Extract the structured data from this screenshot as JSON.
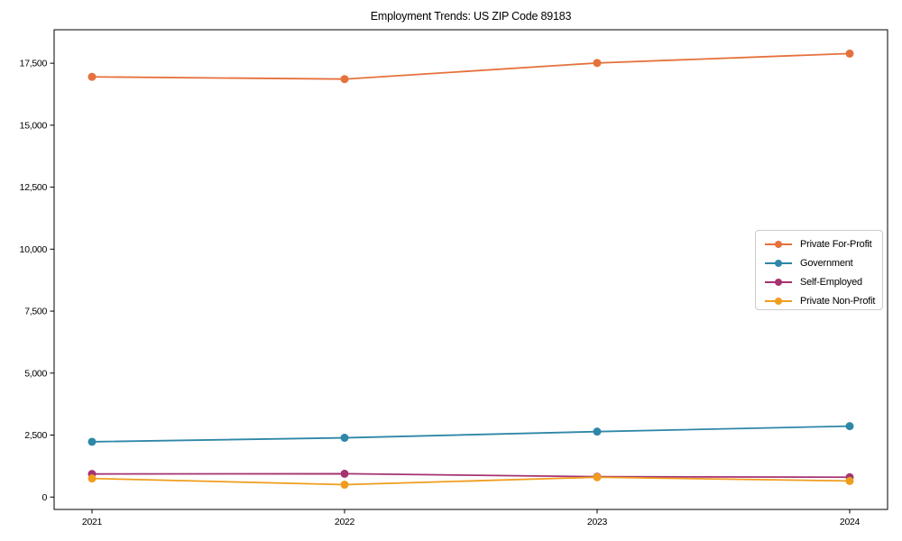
{
  "chart_data": {
    "type": "line",
    "title": "Employment Trends: US ZIP Code 89183",
    "xlabel": "",
    "ylabel": "",
    "categories": [
      "2021",
      "2022",
      "2023",
      "2024"
    ],
    "series": [
      {
        "name": "Private For-Profit",
        "color": "#E5713C",
        "values": [
          16950,
          16860,
          17510,
          17890
        ]
      },
      {
        "name": "Government",
        "color": "#2E87A8",
        "values": [
          2230,
          2390,
          2640,
          2860
        ]
      },
      {
        "name": "Self-Employed",
        "color": "#A53372",
        "values": [
          930,
          940,
          820,
          800
        ]
      },
      {
        "name": "Private Non-Profit",
        "color": "#F09D1E",
        "values": [
          750,
          500,
          800,
          650
        ]
      }
    ],
    "yticks": [
      {
        "value": 0,
        "label": "0"
      },
      {
        "value": 2500,
        "label": "2,500"
      },
      {
        "value": 5000,
        "label": "5,000"
      },
      {
        "value": 7500,
        "label": "7,500"
      },
      {
        "value": 10000,
        "label": "10,000"
      },
      {
        "value": 12500,
        "label": "12,500"
      },
      {
        "value": 15000,
        "label": "15,000"
      },
      {
        "value": 17500,
        "label": "17,500"
      }
    ],
    "ylim": [
      -500,
      18850
    ],
    "grid": false,
    "legend_position": "center right",
    "axis_color": "#000000",
    "background_color": "#ffffff"
  }
}
